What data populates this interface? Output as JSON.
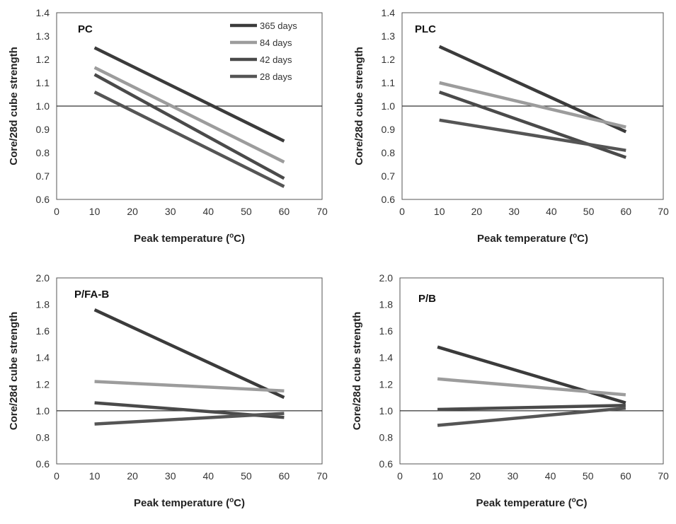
{
  "chart_data": [
    {
      "type": "line",
      "title": "PC",
      "xlabel": "Peak temperature (",
      "xlabel_sup": "o",
      "xlabel_tail": "C)",
      "ylabel": "Core/28d cube strength",
      "xlim": [
        0,
        70
      ],
      "ylim": [
        0.6,
        1.4
      ],
      "xticks": [
        "0",
        "10",
        "20",
        "30",
        "40",
        "50",
        "60",
        "70"
      ],
      "yticks": [
        "0.6",
        "0.7",
        "0.8",
        "0.9",
        "1.0",
        "1.1",
        "1.2",
        "1.3",
        "1.4"
      ],
      "reference_line": 1.0,
      "legend": "top-right",
      "series": [
        {
          "name": "365 days",
          "color": "#3b3b3b",
          "x": [
            10,
            60
          ],
          "y": [
            1.25,
            0.85
          ]
        },
        {
          "name": "84 days",
          "color": "#9c9c9c",
          "x": [
            10,
            60
          ],
          "y": [
            1.165,
            0.76
          ]
        },
        {
          "name": "42 days",
          "color": "#4a4a4a",
          "x": [
            10,
            60
          ],
          "y": [
            1.135,
            0.69
          ]
        },
        {
          "name": "28 days",
          "color": "#555555",
          "x": [
            10,
            60
          ],
          "y": [
            1.06,
            0.655
          ]
        }
      ]
    },
    {
      "type": "line",
      "title": "PLC",
      "xlabel": "Peak temperature (",
      "xlabel_sup": "o",
      "xlabel_tail": "C)",
      "ylabel": "Core/28d cube strength",
      "xlim": [
        0,
        70
      ],
      "ylim": [
        0.6,
        1.4
      ],
      "xticks": [
        "0",
        "10",
        "20",
        "30",
        "40",
        "50",
        "60",
        "70"
      ],
      "yticks": [
        "0.6",
        "0.7",
        "0.8",
        "0.9",
        "1.0",
        "1.1",
        "1.2",
        "1.3",
        "1.4"
      ],
      "reference_line": 1.0,
      "series": [
        {
          "color": "#3b3b3b",
          "x": [
            10,
            60
          ],
          "y": [
            1.255,
            0.89
          ]
        },
        {
          "color": "#9c9c9c",
          "x": [
            10,
            60
          ],
          "y": [
            1.1,
            0.91
          ]
        },
        {
          "color": "#4a4a4a",
          "x": [
            10,
            60
          ],
          "y": [
            1.06,
            0.78
          ]
        },
        {
          "color": "#555555",
          "x": [
            10,
            60
          ],
          "y": [
            0.94,
            0.81
          ]
        }
      ]
    },
    {
      "type": "line",
      "title": "P/FA-B",
      "xlabel": "Peak temperature (",
      "xlabel_sup": "o",
      "xlabel_tail": "C)",
      "ylabel": "Core/28d cube strength",
      "xlim": [
        0,
        70
      ],
      "ylim": [
        0.6,
        2.0
      ],
      "xticks": [
        "0",
        "10",
        "20",
        "30",
        "40",
        "50",
        "60",
        "70"
      ],
      "yticks": [
        "0.6",
        "0.8",
        "1.0",
        "1.2",
        "1.4",
        "1.6",
        "1.8",
        "2.0"
      ],
      "reference_line": 1.0,
      "series": [
        {
          "color": "#3b3b3b",
          "x": [
            10,
            60
          ],
          "y": [
            1.76,
            1.1
          ]
        },
        {
          "color": "#9c9c9c",
          "x": [
            10,
            60
          ],
          "y": [
            1.22,
            1.15
          ]
        },
        {
          "color": "#4a4a4a",
          "x": [
            10,
            60
          ],
          "y": [
            1.06,
            0.95
          ]
        },
        {
          "color": "#555555",
          "x": [
            10,
            60
          ],
          "y": [
            0.9,
            0.98
          ]
        }
      ]
    },
    {
      "type": "line",
      "title": "P/B",
      "xlabel": "Peak temperature (",
      "xlabel_sup": "o",
      "xlabel_tail": "C)",
      "ylabel": "Core/28d cube strength",
      "xlim": [
        0,
        70
      ],
      "ylim": [
        0.6,
        2.0
      ],
      "xticks": [
        "0",
        "10",
        "20",
        "30",
        "40",
        "50",
        "60",
        "70"
      ],
      "yticks": [
        "0.6",
        "0.8",
        "1.0",
        "1.2",
        "1.4",
        "1.6",
        "1.8",
        "2.0"
      ],
      "reference_line": 1.0,
      "series": [
        {
          "color": "#3b3b3b",
          "x": [
            10,
            60
          ],
          "y": [
            1.48,
            1.06
          ]
        },
        {
          "color": "#9c9c9c",
          "x": [
            10,
            60
          ],
          "y": [
            1.24,
            1.12
          ]
        },
        {
          "color": "#4a4a4a",
          "x": [
            10,
            60
          ],
          "y": [
            1.01,
            1.04
          ]
        },
        {
          "color": "#555555",
          "x": [
            10,
            60
          ],
          "y": [
            0.89,
            1.02
          ]
        }
      ]
    }
  ]
}
